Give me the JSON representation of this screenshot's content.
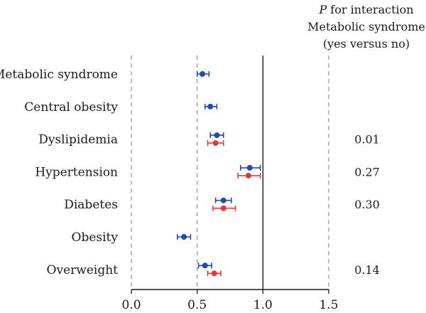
{
  "header": {
    "line1_italic": "P",
    "line1_rest": " for interaction",
    "line2": "Metabolic syndrome",
    "line3": "(yes versus no)"
  },
  "chart_data": {
    "type": "forest",
    "xlim": [
      0.0,
      1.5
    ],
    "xticks": [
      "0.0",
      "0.5",
      "1.0",
      "1.5"
    ],
    "reference_line": 1.0,
    "dashed_lines": [
      0.0,
      0.5,
      1.5
    ],
    "colors": {
      "blue": "#1f4ea8",
      "red": "#e0393e"
    },
    "rows": [
      {
        "label": "Metabolic syndrome",
        "p_interaction": "",
        "estimates": [
          {
            "color": "blue",
            "point": 0.54,
            "lower": 0.5,
            "upper": 0.59
          }
        ]
      },
      {
        "label": "Central obesity",
        "p_interaction": "",
        "estimates": [
          {
            "color": "blue",
            "point": 0.6,
            "lower": 0.56,
            "upper": 0.65
          }
        ]
      },
      {
        "label": "Dyslipidemia",
        "p_interaction": "0.01",
        "estimates": [
          {
            "color": "blue",
            "point": 0.65,
            "lower": 0.6,
            "upper": 0.7
          },
          {
            "color": "red",
            "point": 0.64,
            "lower": 0.58,
            "upper": 0.7
          }
        ]
      },
      {
        "label": "Hypertension",
        "p_interaction": "0.27",
        "estimates": [
          {
            "color": "blue",
            "point": 0.9,
            "lower": 0.83,
            "upper": 0.98
          },
          {
            "color": "red",
            "point": 0.89,
            "lower": 0.81,
            "upper": 0.98
          }
        ]
      },
      {
        "label": "Diabetes",
        "p_interaction": "0.30",
        "estimates": [
          {
            "color": "blue",
            "point": 0.7,
            "lower": 0.64,
            "upper": 0.76
          },
          {
            "color": "red",
            "point": 0.7,
            "lower": 0.62,
            "upper": 0.79
          }
        ]
      },
      {
        "label": "Obesity",
        "p_interaction": "",
        "estimates": [
          {
            "color": "blue",
            "point": 0.4,
            "lower": 0.35,
            "upper": 0.45
          }
        ]
      },
      {
        "label": "Overweight",
        "p_interaction": "0.14",
        "estimates": [
          {
            "color": "blue",
            "point": 0.56,
            "lower": 0.51,
            "upper": 0.61
          },
          {
            "color": "red",
            "point": 0.63,
            "lower": 0.58,
            "upper": 0.68
          }
        ]
      }
    ]
  }
}
